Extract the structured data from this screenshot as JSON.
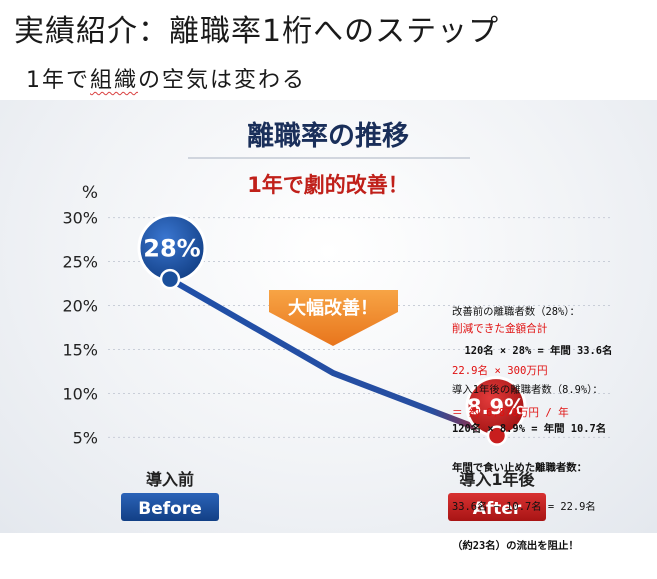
{
  "slide": {
    "title": "実績紹介：離職率1桁へのステップ",
    "subtitle_pre": "1年で",
    "subtitle_mark": "組織",
    "subtitle_post": "の空気は変わる"
  },
  "chart_data": {
    "type": "line",
    "title": "離職率の推移",
    "subtitle": "1年で劇的改善！",
    "ylabel": "%",
    "ylim": [
      3,
      32
    ],
    "yticks": [
      "30%",
      "25%",
      "20%",
      "15%",
      "10%",
      "5%"
    ],
    "ytick_values": [
      30,
      25,
      20,
      15,
      10,
      5
    ],
    "categories": [
      "導入前",
      "導入1年後"
    ],
    "category_tags": [
      "Before",
      "After"
    ],
    "series": [
      {
        "values": [
          28,
          8.9
        ],
        "value_labels": [
          "28%",
          "8.9%"
        ]
      }
    ],
    "path_points": [
      {
        "x": 0,
        "y": 23
      },
      {
        "x": 0.5,
        "y": 12.3
      },
      {
        "x": 1,
        "y": 5.2
      }
    ],
    "arrow_label": "大幅改善！",
    "colors": {
      "line": "#1f4fa8",
      "before": "#1a4f9c",
      "after": "#c81e1e",
      "title_red": "#c0201a"
    }
  },
  "notes": {
    "lines": [
      "改善前の離職者数（28%）：",
      "  120名 × 28% = 年間 33.6名",
      "導入1年後の離職者数（8.9%）：",
      "120名 × 8.9% = 年間 10.7名",
      "年間で食い止めた離職者数：",
      "33.6名 − 10.7名 = 22.9名",
      "（約23名）の流出を阻止！"
    ],
    "red_lines": [
      "削減できた金額合計",
      "22.9名 × 300万円",
      "＝ 約 6,870万円 / 年"
    ]
  }
}
